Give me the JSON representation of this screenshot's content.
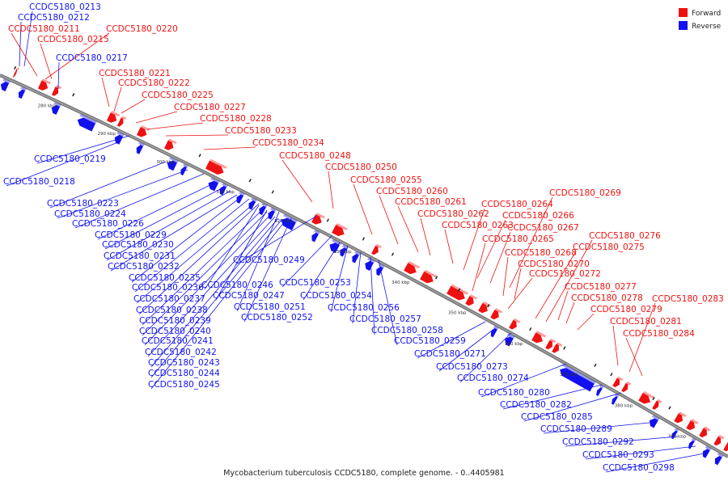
{
  "colors": {
    "forward": "#ee1111",
    "reverse": "#1111ee",
    "axis": "#9a9a9a"
  },
  "legend": [
    {
      "key": "forward",
      "label": "Forward"
    },
    {
      "key": "reverse",
      "label": "Reverse"
    }
  ],
  "footer": "Mycobacterium tuberculosis CCDC5180, complete genome. - 0..4405981",
  "genome": {
    "view_start_kbp": 270,
    "view_end_kbp": 400
  },
  "ticks": [
    "280 kbp",
    "290 kbp",
    "300 kbp",
    "310 kbp",
    "320 kbp",
    "330 kbp",
    "340 kbp",
    "350 kbp",
    "360 kbp",
    "370 kbp",
    "380 kbp",
    "390 kbp"
  ],
  "genes": [
    {
      "name": "CCDC5180_0213",
      "strand": "reverse"
    },
    {
      "name": "CCDC5180_0212",
      "strand": "reverse"
    },
    {
      "name": "CCDC5180_0211",
      "strand": "forward"
    },
    {
      "name": "CCDC5180_0220",
      "strand": "forward"
    },
    {
      "name": "CCDC5180_0215",
      "strand": "forward"
    },
    {
      "name": "CCDC5180_0217",
      "strand": "reverse"
    },
    {
      "name": "CCDC5180_0221",
      "strand": "forward"
    },
    {
      "name": "CCDC5180_0222",
      "strand": "forward"
    },
    {
      "name": "CCDC5180_0225",
      "strand": "forward"
    },
    {
      "name": "CCDC5180_0227",
      "strand": "forward"
    },
    {
      "name": "CCDC5180_0228",
      "strand": "forward"
    },
    {
      "name": "CCDC5180_0233",
      "strand": "forward"
    },
    {
      "name": "CCDC5180_0234",
      "strand": "forward"
    },
    {
      "name": "CCDC5180_0248",
      "strand": "forward"
    },
    {
      "name": "CCDC5180_0250",
      "strand": "forward"
    },
    {
      "name": "CCDC5180_0255",
      "strand": "forward"
    },
    {
      "name": "CCDC5180_0260",
      "strand": "forward"
    },
    {
      "name": "CCDC5180_0261",
      "strand": "forward"
    },
    {
      "name": "CCDC5180_0262",
      "strand": "forward"
    },
    {
      "name": "CCDC5180_0263",
      "strand": "forward"
    },
    {
      "name": "CCDC5180_0264",
      "strand": "forward"
    },
    {
      "name": "CCDC5180_0269",
      "strand": "forward"
    },
    {
      "name": "CCDC5180_0266",
      "strand": "forward"
    },
    {
      "name": "CCDC5180_0267",
      "strand": "forward"
    },
    {
      "name": "CCDC5180_0265",
      "strand": "forward"
    },
    {
      "name": "CCDC5180_0276",
      "strand": "forward"
    },
    {
      "name": "CCDC5180_0275",
      "strand": "forward"
    },
    {
      "name": "CCDC5180_0268",
      "strand": "forward"
    },
    {
      "name": "CCDC5180_0270",
      "strand": "forward"
    },
    {
      "name": "CCDC5180_0272",
      "strand": "forward"
    },
    {
      "name": "CCDC5180_0277",
      "strand": "forward"
    },
    {
      "name": "CCDC5180_0283",
      "strand": "forward"
    },
    {
      "name": "CCDC5180_0278",
      "strand": "forward"
    },
    {
      "name": "CCDC5180_0279",
      "strand": "forward"
    },
    {
      "name": "CCDC5180_0281",
      "strand": "forward"
    },
    {
      "name": "CCDC5180_0284",
      "strand": "forward"
    },
    {
      "name": "CCDC5180_0219",
      "strand": "reverse"
    },
    {
      "name": "CCDC5180_0218",
      "strand": "reverse"
    },
    {
      "name": "CCDC5180_0223",
      "strand": "reverse"
    },
    {
      "name": "CCDC5180_0224",
      "strand": "reverse"
    },
    {
      "name": "CCDC5180_0226",
      "strand": "reverse"
    },
    {
      "name": "CCDC5180_0229",
      "strand": "reverse"
    },
    {
      "name": "CCDC5180_0230",
      "strand": "reverse"
    },
    {
      "name": "CCDC5180_0231",
      "strand": "reverse"
    },
    {
      "name": "CCDC5180_0232",
      "strand": "reverse"
    },
    {
      "name": "CCDC5180_0249",
      "strand": "reverse"
    },
    {
      "name": "CCDC5180_0235",
      "strand": "reverse"
    },
    {
      "name": "CCDC5180_0236",
      "strand": "reverse"
    },
    {
      "name": "CCDC5180_0246",
      "strand": "reverse"
    },
    {
      "name": "CCDC5180_0253",
      "strand": "reverse"
    },
    {
      "name": "CCDC5180_0237",
      "strand": "reverse"
    },
    {
      "name": "CCDC5180_0247",
      "strand": "reverse"
    },
    {
      "name": "CCDC5180_0254",
      "strand": "reverse"
    },
    {
      "name": "CCDC5180_0238",
      "strand": "reverse"
    },
    {
      "name": "CCDC5180_0251",
      "strand": "reverse"
    },
    {
      "name": "CCDC5180_0256",
      "strand": "reverse"
    },
    {
      "name": "CCDC5180_0239",
      "strand": "reverse"
    },
    {
      "name": "CCDC5180_0252",
      "strand": "reverse"
    },
    {
      "name": "CCDC5180_0257",
      "strand": "reverse"
    },
    {
      "name": "CCDC5180_0240",
      "strand": "reverse"
    },
    {
      "name": "CCDC5180_0258",
      "strand": "reverse"
    },
    {
      "name": "CCDC5180_0241",
      "strand": "reverse"
    },
    {
      "name": "CCDC5180_0259",
      "strand": "reverse"
    },
    {
      "name": "CCDC5180_0242",
      "strand": "reverse"
    },
    {
      "name": "CCDC5180_0271",
      "strand": "reverse"
    },
    {
      "name": "CCDC5180_0243",
      "strand": "reverse"
    },
    {
      "name": "CCDC5180_0273",
      "strand": "reverse"
    },
    {
      "name": "CCDC5180_0244",
      "strand": "reverse"
    },
    {
      "name": "CCDC5180_0274",
      "strand": "reverse"
    },
    {
      "name": "CCDC5180_0245",
      "strand": "reverse"
    },
    {
      "name": "CCDC5180_0280",
      "strand": "reverse"
    },
    {
      "name": "CCDC5180_0282",
      "strand": "reverse"
    },
    {
      "name": "CCDC5180_0285",
      "strand": "reverse"
    },
    {
      "name": "CCDC5180_0289",
      "strand": "reverse"
    },
    {
      "name": "CCDC5180_0292",
      "strand": "reverse"
    },
    {
      "name": "CCDC5180_0293",
      "strand": "reverse"
    },
    {
      "name": "CCDC5180_0298",
      "strand": "reverse"
    }
  ]
}
